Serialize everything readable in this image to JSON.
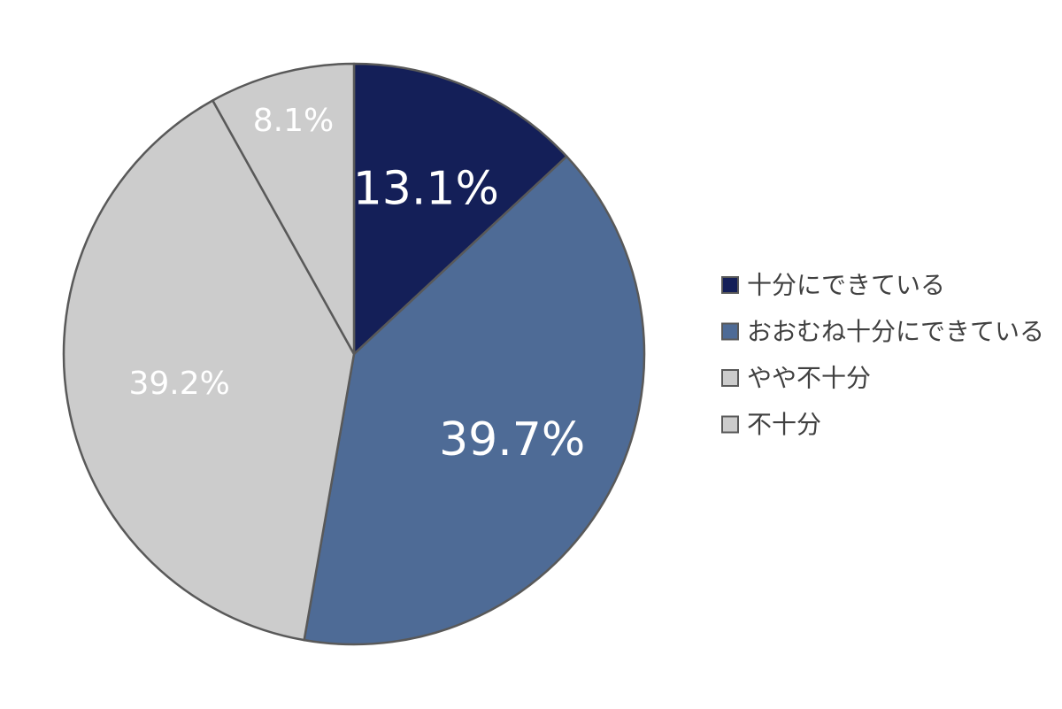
{
  "chart_data": {
    "type": "pie",
    "start": "12 o'clock",
    "direction": "clockwise",
    "slices": [
      {
        "label": "十分にできている",
        "value": 13.1,
        "value_label": "13.1%",
        "color": "#141f58"
      },
      {
        "label": "おおむね十分にできている",
        "value": 39.7,
        "value_label": "39.7%",
        "color": "#4e6b96"
      },
      {
        "label": "やや不十分",
        "value": 39.2,
        "value_label": "39.2%",
        "color": "#cccccc"
      },
      {
        "label": "不十分",
        "value": 8.1,
        "value_label": "8.1%",
        "color": "#cccccc"
      }
    ],
    "legend": "right",
    "slice_border_color": "#595959"
  }
}
